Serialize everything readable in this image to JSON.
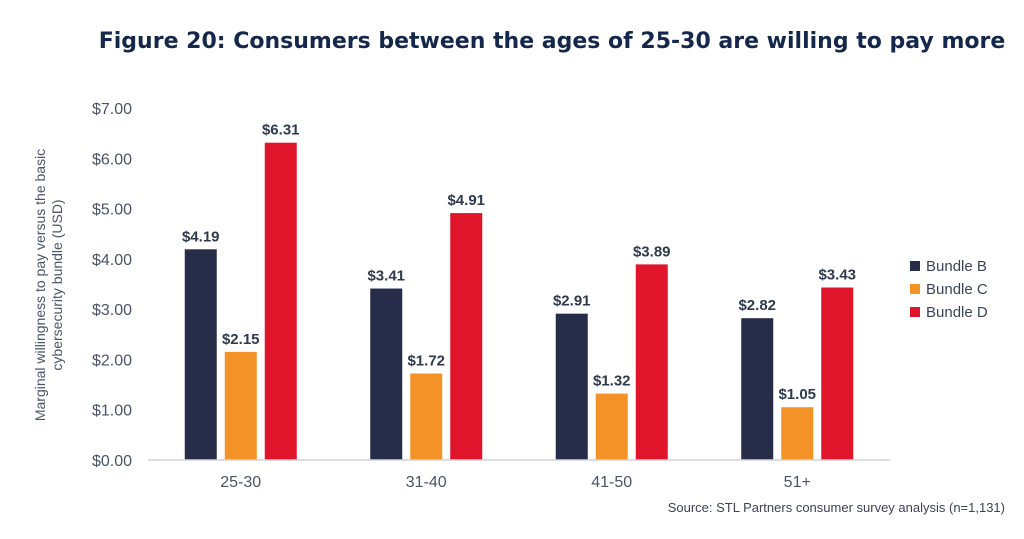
{
  "chart_data": {
    "type": "bar",
    "title": "Figure 20: Consumers between the ages of 25-30 are willing to pay more",
    "ylabel_lines": [
      "Marginal willingness to pay versus the basic",
      "cybersecurity bundle (USD)"
    ],
    "xlabel": "",
    "categories": [
      "25-30",
      "31-40",
      "41-50",
      "51+"
    ],
    "series": [
      {
        "name": "Bundle B",
        "color": "#272c48",
        "values": [
          4.19,
          3.41,
          2.91,
          2.82
        ],
        "labels": [
          "$4.19",
          "$3.41",
          "$2.91",
          "$2.82"
        ]
      },
      {
        "name": "Bundle C",
        "color": "#f39226",
        "values": [
          2.15,
          1.72,
          1.32,
          1.05
        ],
        "labels": [
          "$2.15",
          "$1.72",
          "$1.32",
          "$1.05"
        ]
      },
      {
        "name": "Bundle D",
        "color": "#e0142b",
        "values": [
          6.31,
          4.91,
          3.89,
          3.43
        ],
        "labels": [
          "$6.31",
          "$4.91",
          "$3.89",
          "$3.43"
        ]
      }
    ],
    "ylim": [
      0,
      7
    ],
    "yticks": [
      0,
      1,
      2,
      3,
      4,
      5,
      6,
      7
    ],
    "ytick_labels": [
      "$0.00",
      "$1.00",
      "$2.00",
      "$3.00",
      "$4.00",
      "$5.00",
      "$6.00",
      "$7.00"
    ],
    "grid": false,
    "legend_position": "right",
    "source": "Source: STL Partners consumer survey analysis (n=1,131)"
  }
}
